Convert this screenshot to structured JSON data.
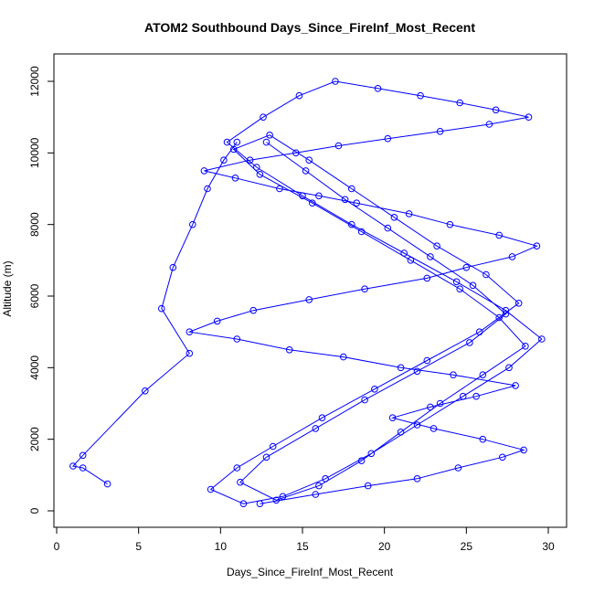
{
  "chart_data": {
    "type": "scatter",
    "title": "ATOM2 Southbound Days_Since_FireInf_Most_Recent",
    "xlabel": "Days_Since_FireInf_Most_Recent",
    "ylabel": "Altitude (m)",
    "xlim": [
      0,
      30
    ],
    "ylim": [
      0,
      12000
    ],
    "x_ticks": [
      0,
      5,
      10,
      15,
      20,
      25,
      30
    ],
    "y_ticks": [
      0,
      2000,
      4000,
      6000,
      8000,
      10000,
      12000
    ],
    "grid": false,
    "legend": "none",
    "color": "#0000ff",
    "style": "points-connected-by-lines",
    "series": [
      {
        "x": [
          12.4,
          15.8,
          19.0,
          22.0,
          24.5,
          27.2,
          28.5,
          26.0,
          23.0,
          20.5,
          22.8,
          25.6,
          28.0,
          24.2,
          21.0,
          17.5,
          14.2,
          11.0,
          8.1,
          9.8,
          12.0,
          15.4,
          18.8,
          22.6,
          25.0,
          27.8,
          29.3,
          27.0,
          24.0,
          21.5,
          18.3,
          16.0,
          13.6,
          10.9,
          9.0,
          11.8,
          14.6,
          17.2,
          20.2,
          23.4,
          26.4,
          28.8,
          26.8,
          24.6,
          22.2,
          19.6,
          17.0,
          14.8,
          12.6,
          10.4,
          12.2,
          15.0,
          18.0,
          21.2,
          24.4,
          27.4,
          29.6,
          27.6,
          24.8,
          22.0,
          19.2,
          16.4,
          13.8,
          11.4,
          9.4,
          11.0,
          13.2,
          16.2,
          19.4,
          22.6,
          25.8,
          28.2,
          26.2,
          23.2,
          20.6,
          18.0,
          15.4,
          13.0,
          10.8,
          12.4,
          15.6,
          18.6,
          21.6,
          24.6,
          27.0,
          28.6,
          26.0,
          23.4,
          21.0,
          18.6,
          16.0,
          13.4,
          11.2,
          12.8,
          15.8,
          18.8,
          22.0,
          25.2,
          27.4,
          25.4,
          22.8,
          20.2,
          17.6,
          15.2,
          12.8
        ],
        "y": [
          200,
          460,
          700,
          900,
          1200,
          1500,
          1700,
          2000,
          2300,
          2600,
          2900,
          3200,
          3500,
          3800,
          4000,
          4300,
          4500,
          4800,
          5000,
          5300,
          5600,
          5900,
          6200,
          6500,
          6800,
          7100,
          7400,
          7700,
          8000,
          8300,
          8600,
          8800,
          9000,
          9300,
          9500,
          9800,
          10000,
          10200,
          10400,
          10600,
          10800,
          11000,
          11200,
          11400,
          11600,
          11800,
          12000,
          11600,
          11000,
          10300,
          9600,
          8800,
          8000,
          7200,
          6400,
          5600,
          4800,
          4000,
          3200,
          2400,
          1600,
          900,
          400,
          200,
          600,
          1200,
          1800,
          2600,
          3400,
          4200,
          5000,
          5800,
          6600,
          7400,
          8200,
          9000,
          9800,
          10500,
          10100,
          9400,
          8600,
          7800,
          7000,
          6200,
          5400,
          4600,
          3800,
          3000,
          2200,
          1400,
          700,
          300,
          800,
          1500,
          2300,
          3100,
          3900,
          4700,
          5500,
          6300,
          7100,
          7900,
          8700,
          9500,
          10300
        ]
      },
      {
        "x": [
          3.1,
          1.6,
          1.0,
          1.6,
          5.4,
          8.1,
          6.4,
          7.1,
          8.3,
          9.2,
          10.2,
          11.0
        ],
        "y": [
          750,
          1200,
          1250,
          1550,
          3350,
          4400,
          5650,
          6800,
          8000,
          9000,
          9800,
          10300
        ]
      }
    ]
  }
}
